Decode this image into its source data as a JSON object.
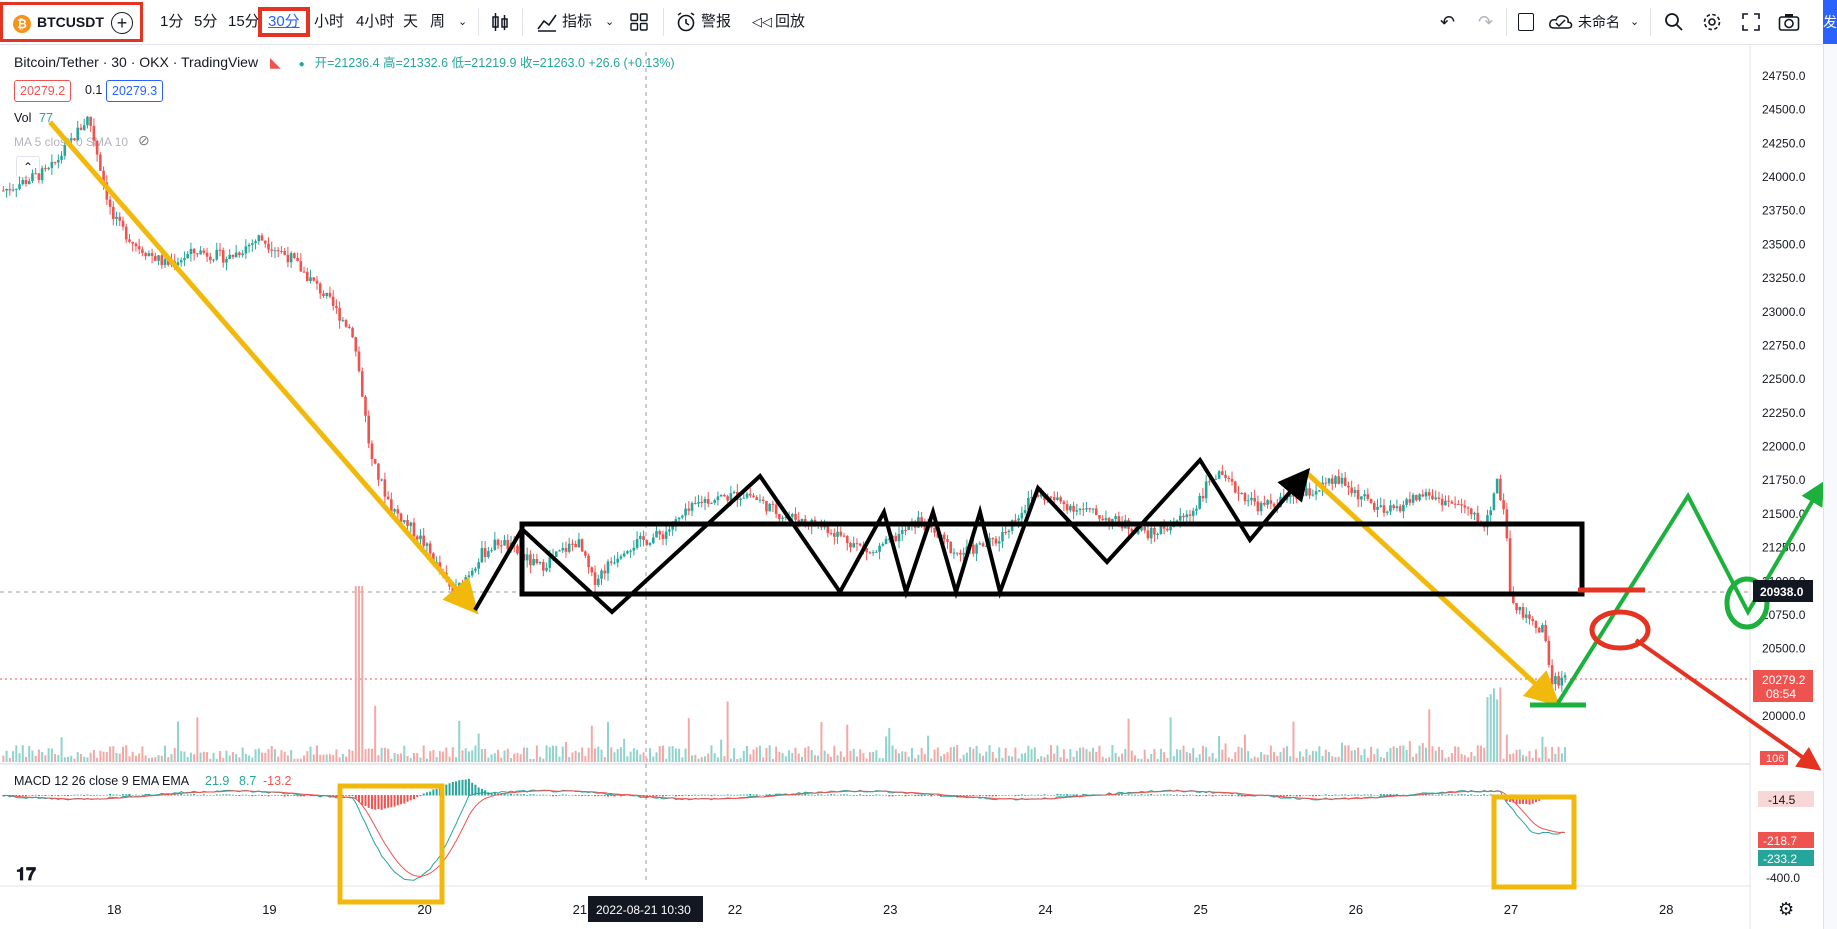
{
  "toolbar": {
    "symbol": "BTCUSDT",
    "timeframes": [
      "1分",
      "5分",
      "15分",
      "30分",
      "小时",
      "4小时",
      "天",
      "周"
    ],
    "selected_timeframe": "30分",
    "indicators_label": "指标",
    "alert_label": "警报",
    "replay_label": "回放",
    "layout_name": "未命名",
    "publish_label": "发"
  },
  "legend": {
    "title": "Bitcoin/Tether · 30 · OKX · TradingView",
    "ohlc": "开=21236.4 高=21332.6 低=21219.9 收=21263.0 +26.6 (+0.13%)",
    "bid": "20279.2",
    "spread": "0.1",
    "ask": "20279.3",
    "vol_label": "Vol",
    "vol_value": "77",
    "ma_label": "MA 5 close 0 SMA 10",
    "macd_label": "MACD 12 26 close 9 EMA EMA",
    "macd_values": [
      "21.9",
      "8.7",
      "-13.2"
    ]
  },
  "chart_data": {
    "type": "candlestick",
    "title": "Bitcoin/Tether · 30 · OKX · TradingView",
    "y_ticks": [
      24750.0,
      24500.0,
      24250.0,
      24000.0,
      23750.0,
      23500.0,
      23250.0,
      23000.0,
      22750.0,
      22500.0,
      22250.0,
      22000.0,
      21750.0,
      21500.0,
      21250.0,
      21000.0,
      20750.0,
      20500.0,
      20250.0,
      20000.0
    ],
    "ylim": [
      19650,
      24950
    ],
    "x_ticks": [
      "18",
      "19",
      "20",
      "21",
      "22",
      "23",
      "24",
      "25",
      "26",
      "27",
      "28"
    ],
    "x_tick_days": [
      18,
      19,
      20,
      21,
      22,
      23,
      24,
      25,
      26,
      27,
      28
    ],
    "cursor_label": "2022-08-21  10:30",
    "series": [
      {
        "values_by_day": [
          [
            17.3,
            23900
          ],
          [
            17.6,
            24050
          ],
          [
            17.85,
            24450
          ],
          [
            18.0,
            23700
          ],
          [
            18.15,
            23500
          ],
          [
            18.35,
            23350
          ],
          [
            18.55,
            23450
          ],
          [
            18.75,
            23400
          ],
          [
            18.95,
            23550
          ],
          [
            19.15,
            23400
          ],
          [
            19.35,
            23150
          ],
          [
            19.55,
            22850
          ],
          [
            19.6,
            22500
          ],
          [
            19.67,
            21900
          ],
          [
            19.8,
            21550
          ],
          [
            20.0,
            21300
          ],
          [
            20.2,
            20900
          ],
          [
            20.38,
            21200
          ],
          [
            20.5,
            21300
          ],
          [
            20.75,
            21100
          ],
          [
            21.0,
            21300
          ],
          [
            21.1,
            21000
          ],
          [
            21.3,
            21250
          ],
          [
            21.55,
            21350
          ],
          [
            21.8,
            21600
          ],
          [
            22.1,
            21650
          ],
          [
            22.3,
            21500
          ],
          [
            22.6,
            21400
          ],
          [
            22.9,
            21200
          ],
          [
            23.2,
            21450
          ],
          [
            23.45,
            21200
          ],
          [
            23.7,
            21300
          ],
          [
            23.95,
            21650
          ],
          [
            24.2,
            21550
          ],
          [
            24.45,
            21450
          ],
          [
            24.7,
            21350
          ],
          [
            24.95,
            21500
          ],
          [
            25.1,
            21800
          ],
          [
            25.4,
            21550
          ],
          [
            25.7,
            21650
          ],
          [
            25.9,
            21750
          ],
          [
            26.2,
            21500
          ],
          [
            26.45,
            21650
          ],
          [
            26.7,
            21550
          ],
          [
            26.85,
            21400
          ],
          [
            26.92,
            21750
          ],
          [
            26.98,
            21500
          ],
          [
            27.0,
            20900
          ],
          [
            27.12,
            20700
          ],
          [
            27.22,
            20650
          ],
          [
            27.28,
            20250
          ],
          [
            27.38,
            20300
          ]
        ]
      }
    ],
    "price_labels": {
      "current": "20938.0",
      "last": "20279.2",
      "countdown": "08:54",
      "volume": "106"
    },
    "macd_ticks": [
      "-14.5",
      "-218.7",
      "-233.2",
      "-400.0"
    ]
  },
  "colors": {
    "up": "#26a69a",
    "down": "#ef5350",
    "accent": "#2962ff",
    "annot_yellow": "#f2b90d",
    "annot_red": "#e53322",
    "annot_green": "#1bb13c"
  },
  "icons": [
    "search-icon",
    "gear-icon",
    "fullscreen-icon",
    "camera-icon",
    "undo-icon",
    "redo-icon",
    "cloud-icon",
    "candle-icon",
    "indicators-icon",
    "grid-icon",
    "alarm-icon",
    "replay-icon"
  ]
}
